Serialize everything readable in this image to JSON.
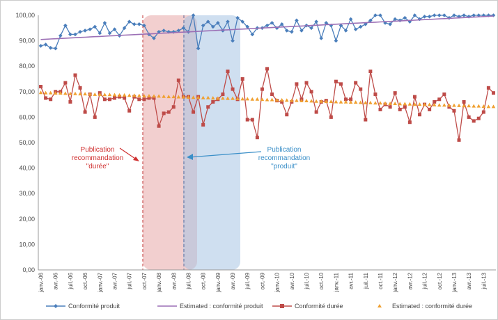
{
  "chart_data": {
    "type": "line",
    "categories": [
      "janv.-06",
      null,
      null,
      "avr.-06",
      null,
      null,
      "juil.-06",
      null,
      null,
      "oct.-06",
      null,
      null,
      "janv.-07",
      null,
      null,
      "avr.-07",
      null,
      null,
      "juil.-07",
      null,
      null,
      "oct.-07",
      null,
      null,
      "janv.-08",
      null,
      null,
      "avr.-08",
      null,
      null,
      "juil.-08",
      null,
      null,
      "oct.-08",
      null,
      null,
      "janv.-09",
      null,
      null,
      "avr.-09",
      null,
      null,
      "juil.-09",
      null,
      null,
      "oct.-09",
      null,
      null,
      "janv.-10",
      null,
      null,
      "avr.-10",
      null,
      null,
      "juil.-10",
      null,
      null,
      "oct.-10",
      null,
      null,
      "janv.-11",
      null,
      null,
      "avr.-11",
      null,
      null,
      "juil.-11",
      null,
      null,
      "oct.-11",
      null,
      null,
      "janv.-12",
      null,
      null,
      "avr.-12",
      null,
      null,
      "juil.-12",
      null,
      null,
      "oct.-12",
      null,
      null,
      "janv.-13",
      null,
      null,
      "avr.-13",
      null,
      null,
      "juil.-13",
      null,
      null
    ],
    "series": [
      {
        "name": "Conformité produit",
        "color": "#4a7ebb",
        "marker": "diamond",
        "line": true,
        "values": [
          88,
          88.5,
          87.2,
          87,
          92,
          96,
          92.5,
          92.5,
          93.5,
          94,
          94.5,
          95.5,
          93,
          97,
          93,
          94.5,
          92,
          95,
          97.5,
          96.5,
          96.5,
          96,
          92.5,
          91,
          93.5,
          94,
          93.5,
          93.5,
          94,
          95,
          93.5,
          100,
          87,
          96,
          97.5,
          95.5,
          97,
          94,
          97.5,
          90,
          99,
          97.5,
          95.5,
          92.5,
          95,
          95,
          96,
          97,
          95,
          96.5,
          94,
          93.5,
          98,
          94,
          96,
          95,
          97.5,
          91,
          97,
          96,
          90,
          96,
          94,
          98.5,
          94.5,
          95.5,
          96.5,
          98,
          100,
          100,
          97,
          96.5,
          98.5,
          98,
          99,
          97.5,
          100,
          98.5,
          99.5,
          99.5,
          100,
          100,
          100,
          99,
          100,
          99.5,
          100,
          99.5,
          100,
          100,
          100,
          100,
          100
        ]
      },
      {
        "name": "Estimated : conformité produit",
        "color": "#9b6fb5",
        "marker": "none",
        "line": true,
        "values": [
          90.5,
          90.6,
          90.7,
          90.8,
          90.9,
          91.0,
          91.1,
          91.2,
          91.3,
          91.4,
          91.5,
          91.6,
          91.7,
          91.8,
          91.9,
          92.0,
          92.1,
          92.2,
          92.3,
          92.4,
          92.5,
          92.6,
          92.7,
          92.8,
          92.9,
          93.0,
          93.1,
          93.2,
          93.3,
          93.4,
          93.5,
          93.6,
          93.7,
          93.8,
          93.9,
          94.0,
          94.1,
          94.2,
          94.3,
          94.4,
          94.5,
          94.6,
          94.7,
          94.8,
          94.9,
          95.0,
          95.1,
          95.2,
          95.3,
          95.4,
          95.5,
          95.6,
          95.7,
          95.8,
          95.9,
          96.0,
          96.1,
          96.2,
          96.3,
          96.4,
          96.5,
          96.6,
          96.7,
          96.8,
          96.9,
          97.0,
          97.1,
          97.2,
          97.3,
          97.4,
          97.5,
          97.6,
          97.7,
          97.8,
          97.9,
          98.0,
          98.1,
          98.2,
          98.3,
          98.4,
          98.5,
          98.6,
          98.7,
          98.8,
          98.9,
          99.0,
          99.1,
          99.2,
          99.3,
          99.4,
          99.5,
          99.6,
          99.7
        ]
      },
      {
        "name": "Conformité durée",
        "color": "#be4b48",
        "marker": "square",
        "line": true,
        "values": [
          72,
          67.5,
          67,
          70,
          70,
          73.5,
          66,
          76.5,
          71.5,
          62,
          69,
          60,
          69.5,
          67,
          67,
          67.5,
          68,
          67.5,
          62.5,
          68,
          67,
          67,
          67.5,
          67.5,
          56.5,
          61.5,
          62,
          64,
          74.5,
          68,
          68,
          62,
          68,
          57,
          64,
          66,
          67,
          69,
          78,
          71,
          67,
          75,
          59,
          59,
          52,
          71,
          79,
          69,
          66.5,
          66,
          61,
          66,
          73,
          67,
          73.5,
          70,
          62,
          66,
          66.5,
          60,
          74,
          73,
          67,
          67,
          73.5,
          71,
          59,
          78,
          69,
          63,
          65,
          64,
          69.5,
          63,
          64,
          58,
          68,
          61,
          65,
          63,
          66,
          67,
          69,
          64,
          62.5,
          51,
          66,
          60,
          58.5,
          59.5,
          62,
          71.5,
          69.5
        ]
      },
      {
        "name": "Estimated : conformité durée",
        "color": "#f0a030",
        "marker": "triangle",
        "line": false,
        "values": [
          69.6,
          69.5,
          69.5,
          69.4,
          69.4,
          69.3,
          69.2,
          69.2,
          69.1,
          69.1,
          69.0,
          68.9,
          68.9,
          68.8,
          68.8,
          68.7,
          68.6,
          68.6,
          68.5,
          68.5,
          68.4,
          68.3,
          68.3,
          68.2,
          68.2,
          68.1,
          68.0,
          68.0,
          67.9,
          67.9,
          67.8,
          67.7,
          67.7,
          67.6,
          67.6,
          67.5,
          67.4,
          67.4,
          67.3,
          67.3,
          67.2,
          67.1,
          67.1,
          67.0,
          67.0,
          66.9,
          66.8,
          66.8,
          66.7,
          66.7,
          66.6,
          66.5,
          66.5,
          66.4,
          66.4,
          66.3,
          66.2,
          66.2,
          66.1,
          66.1,
          66.0,
          65.9,
          65.9,
          65.8,
          65.8,
          65.7,
          65.6,
          65.6,
          65.5,
          65.5,
          65.4,
          65.3,
          65.3,
          65.2,
          65.2,
          65.1,
          65.0,
          65.0,
          64.9,
          64.9,
          64.8,
          64.7,
          64.7,
          64.6,
          64.6,
          64.5,
          64.4,
          64.4,
          64.3,
          64.3,
          64.2,
          64.1,
          64.1
        ]
      }
    ],
    "ylim": [
      0,
      100
    ],
    "yticks": [
      {
        "value": 0,
        "label": "0,00"
      },
      {
        "value": 10,
        "label": "10,00"
      },
      {
        "value": 20,
        "label": "20,00"
      },
      {
        "value": 30,
        "label": "30,00"
      },
      {
        "value": 40,
        "label": "40,00"
      },
      {
        "value": 50,
        "label": "50,00"
      },
      {
        "value": 60,
        "label": "60,00"
      },
      {
        "value": 70,
        "label": "70,00"
      },
      {
        "value": 80,
        "label": "80,00"
      },
      {
        "value": 90,
        "label": "90,00"
      },
      {
        "value": 100,
        "label": "100,00"
      }
    ],
    "grid": true,
    "legend": "bottom",
    "annotations": [
      {
        "lines": [
          "Publication",
          "recommandation",
          "\"durée\""
        ],
        "color": "#d03030"
      },
      {
        "lines": [
          "Publication",
          "recommandation",
          "\"produit\""
        ],
        "color": "#3a8fc8"
      }
    ]
  }
}
